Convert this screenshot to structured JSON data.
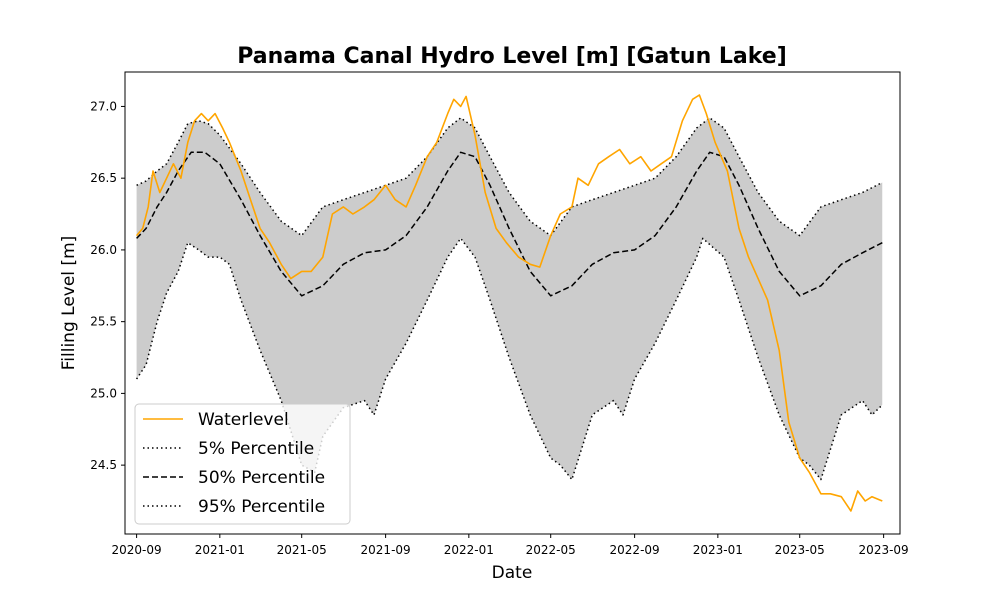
{
  "chart_data": {
    "type": "line",
    "title": "Panama Canal Hydro Level [m] [Gatun Lake]",
    "xlabel": "Date",
    "ylabel": "Filling Level [m]",
    "xlim": [
      "2020-08-15",
      "2023-09-25"
    ],
    "ylim": [
      24.02,
      27.24
    ],
    "x_ticks": [
      "2020-09",
      "2021-01",
      "2021-05",
      "2021-09",
      "2022-01",
      "2022-05",
      "2022-09",
      "2023-01",
      "2023-05",
      "2023-09"
    ],
    "y_ticks": [
      24.5,
      25.0,
      25.5,
      26.0,
      26.5,
      27.0
    ],
    "band_fill": "#cccccc",
    "legend_position": "lower left",
    "series": [
      {
        "name": "Waterlevel",
        "style": "solid",
        "color": "#ffa500",
        "points": [
          [
            "2020-09-01",
            26.1
          ],
          [
            "2020-09-10",
            26.15
          ],
          [
            "2020-09-18",
            26.3
          ],
          [
            "2020-09-25",
            26.55
          ],
          [
            "2020-10-05",
            26.4
          ],
          [
            "2020-10-15",
            26.5
          ],
          [
            "2020-10-25",
            26.6
          ],
          [
            "2020-11-05",
            26.5
          ],
          [
            "2020-11-15",
            26.75
          ],
          [
            "2020-11-25",
            26.9
          ],
          [
            "2020-12-05",
            26.95
          ],
          [
            "2020-12-15",
            26.9
          ],
          [
            "2020-12-25",
            26.95
          ],
          [
            "2021-01-05",
            26.85
          ],
          [
            "2021-01-15",
            26.75
          ],
          [
            "2021-02-01",
            26.55
          ],
          [
            "2021-02-15",
            26.35
          ],
          [
            "2021-03-01",
            26.15
          ],
          [
            "2021-03-15",
            26.05
          ],
          [
            "2021-04-01",
            25.9
          ],
          [
            "2021-04-15",
            25.8
          ],
          [
            "2021-05-01",
            25.85
          ],
          [
            "2021-05-15",
            25.85
          ],
          [
            "2021-06-01",
            25.95
          ],
          [
            "2021-06-15",
            26.25
          ],
          [
            "2021-07-01",
            26.3
          ],
          [
            "2021-07-15",
            26.25
          ],
          [
            "2021-08-01",
            26.3
          ],
          [
            "2021-08-15",
            26.35
          ],
          [
            "2021-09-01",
            26.45
          ],
          [
            "2021-09-15",
            26.35
          ],
          [
            "2021-10-01",
            26.3
          ],
          [
            "2021-10-15",
            26.45
          ],
          [
            "2021-11-01",
            26.65
          ],
          [
            "2021-11-15",
            26.75
          ],
          [
            "2021-12-01",
            26.95
          ],
          [
            "2021-12-10",
            27.05
          ],
          [
            "2021-12-20",
            27.0
          ],
          [
            "2021-12-28",
            27.07
          ],
          [
            "2022-01-10",
            26.8
          ],
          [
            "2022-01-25",
            26.4
          ],
          [
            "2022-02-10",
            26.15
          ],
          [
            "2022-02-25",
            26.05
          ],
          [
            "2022-03-15",
            25.95
          ],
          [
            "2022-04-01",
            25.9
          ],
          [
            "2022-04-15",
            25.88
          ],
          [
            "2022-05-01",
            26.1
          ],
          [
            "2022-05-15",
            26.25
          ],
          [
            "2022-06-01",
            26.3
          ],
          [
            "2022-06-10",
            26.5
          ],
          [
            "2022-06-25",
            26.45
          ],
          [
            "2022-07-10",
            26.6
          ],
          [
            "2022-07-25",
            26.65
          ],
          [
            "2022-08-10",
            26.7
          ],
          [
            "2022-08-25",
            26.6
          ],
          [
            "2022-09-10",
            26.65
          ],
          [
            "2022-09-25",
            26.55
          ],
          [
            "2022-10-10",
            26.6
          ],
          [
            "2022-10-25",
            26.65
          ],
          [
            "2022-11-10",
            26.9
          ],
          [
            "2022-11-25",
            27.05
          ],
          [
            "2022-12-05",
            27.08
          ],
          [
            "2022-12-15",
            26.95
          ],
          [
            "2022-12-28",
            26.75
          ],
          [
            "2023-01-15",
            26.55
          ],
          [
            "2023-02-01",
            26.15
          ],
          [
            "2023-02-15",
            25.95
          ],
          [
            "2023-03-01",
            25.8
          ],
          [
            "2023-03-15",
            25.65
          ],
          [
            "2023-04-01",
            25.3
          ],
          [
            "2023-04-15",
            24.8
          ],
          [
            "2023-05-01",
            24.55
          ],
          [
            "2023-05-15",
            24.45
          ],
          [
            "2023-06-01",
            24.3
          ],
          [
            "2023-06-15",
            24.3
          ],
          [
            "2023-07-01",
            24.28
          ],
          [
            "2023-07-15",
            24.18
          ],
          [
            "2023-07-25",
            24.32
          ],
          [
            "2023-08-05",
            24.25
          ],
          [
            "2023-08-15",
            24.28
          ],
          [
            "2023-08-30",
            24.25
          ]
        ]
      },
      {
        "name": "5% Percentile",
        "style": "dotted",
        "color": "#000000",
        "points": [
          [
            "2020-09-01",
            25.1
          ],
          [
            "2020-09-15",
            25.2
          ],
          [
            "2020-10-01",
            25.5
          ],
          [
            "2020-10-15",
            25.7
          ],
          [
            "2020-11-01",
            25.85
          ],
          [
            "2020-11-15",
            26.05
          ],
          [
            "2020-12-01",
            26.0
          ],
          [
            "2020-12-15",
            25.95
          ],
          [
            "2021-01-01",
            25.95
          ],
          [
            "2021-01-15",
            25.9
          ],
          [
            "2021-02-01",
            25.65
          ],
          [
            "2021-03-01",
            25.3
          ],
          [
            "2021-04-01",
            24.95
          ],
          [
            "2021-05-01",
            24.5
          ],
          [
            "2021-05-20",
            24.45
          ],
          [
            "2021-06-01",
            24.7
          ],
          [
            "2021-07-01",
            24.9
          ],
          [
            "2021-08-01",
            24.95
          ],
          [
            "2021-08-15",
            24.85
          ],
          [
            "2021-09-01",
            25.1
          ],
          [
            "2021-10-01",
            25.35
          ],
          [
            "2021-11-01",
            25.65
          ],
          [
            "2021-12-01",
            25.95
          ],
          [
            "2021-12-20",
            26.08
          ],
          [
            "2022-01-10",
            25.95
          ],
          [
            "2022-02-01",
            25.65
          ],
          [
            "2022-03-01",
            25.25
          ],
          [
            "2022-04-01",
            24.85
          ],
          [
            "2022-05-01",
            24.55
          ],
          [
            "2022-05-15",
            24.5
          ],
          [
            "2022-06-01",
            24.4
          ],
          [
            "2022-07-01",
            24.85
          ],
          [
            "2022-08-01",
            24.95
          ],
          [
            "2022-08-15",
            24.85
          ],
          [
            "2022-09-01",
            25.1
          ],
          [
            "2022-10-01",
            25.35
          ],
          [
            "2022-11-01",
            25.65
          ],
          [
            "2022-12-01",
            25.95
          ],
          [
            "2022-12-10",
            26.08
          ],
          [
            "2023-01-10",
            25.95
          ],
          [
            "2023-02-01",
            25.65
          ],
          [
            "2023-03-01",
            25.25
          ],
          [
            "2023-04-01",
            24.85
          ],
          [
            "2023-05-01",
            24.55
          ],
          [
            "2023-05-15",
            24.5
          ],
          [
            "2023-06-01",
            24.4
          ],
          [
            "2023-07-01",
            24.85
          ],
          [
            "2023-08-01",
            24.95
          ],
          [
            "2023-08-15",
            24.85
          ],
          [
            "2023-08-30",
            24.92
          ]
        ]
      },
      {
        "name": "50% Percentile",
        "style": "dashed",
        "color": "#000000",
        "points": [
          [
            "2020-09-01",
            26.08
          ],
          [
            "2020-09-15",
            26.15
          ],
          [
            "2020-10-01",
            26.3
          ],
          [
            "2020-10-15",
            26.4
          ],
          [
            "2020-11-01",
            26.55
          ],
          [
            "2020-11-20",
            26.68
          ],
          [
            "2020-12-10",
            26.68
          ],
          [
            "2021-01-01",
            26.6
          ],
          [
            "2021-02-01",
            26.35
          ],
          [
            "2021-03-01",
            26.1
          ],
          [
            "2021-04-01",
            25.85
          ],
          [
            "2021-05-01",
            25.68
          ],
          [
            "2021-06-01",
            25.75
          ],
          [
            "2021-07-01",
            25.9
          ],
          [
            "2021-08-01",
            25.98
          ],
          [
            "2021-09-01",
            26.0
          ],
          [
            "2021-10-01",
            26.1
          ],
          [
            "2021-11-01",
            26.3
          ],
          [
            "2021-12-01",
            26.55
          ],
          [
            "2021-12-20",
            26.68
          ],
          [
            "2022-01-10",
            26.65
          ],
          [
            "2022-02-01",
            26.45
          ],
          [
            "2022-03-01",
            26.15
          ],
          [
            "2022-04-01",
            25.85
          ],
          [
            "2022-05-01",
            25.68
          ],
          [
            "2022-06-01",
            25.75
          ],
          [
            "2022-07-01",
            25.9
          ],
          [
            "2022-08-01",
            25.98
          ],
          [
            "2022-09-01",
            26.0
          ],
          [
            "2022-10-01",
            26.1
          ],
          [
            "2022-11-01",
            26.3
          ],
          [
            "2022-12-01",
            26.55
          ],
          [
            "2022-12-20",
            26.68
          ],
          [
            "2023-01-10",
            26.65
          ],
          [
            "2023-02-01",
            26.45
          ],
          [
            "2023-03-01",
            26.15
          ],
          [
            "2023-04-01",
            25.85
          ],
          [
            "2023-05-01",
            25.68
          ],
          [
            "2023-06-01",
            25.75
          ],
          [
            "2023-07-01",
            25.9
          ],
          [
            "2023-08-01",
            25.98
          ],
          [
            "2023-08-30",
            26.05
          ]
        ]
      },
      {
        "name": "95% Percentile",
        "style": "dotted",
        "color": "#000000",
        "points": [
          [
            "2020-09-01",
            26.45
          ],
          [
            "2020-09-15",
            26.48
          ],
          [
            "2020-10-01",
            26.55
          ],
          [
            "2020-10-15",
            26.6
          ],
          [
            "2020-11-01",
            26.75
          ],
          [
            "2020-11-15",
            26.88
          ],
          [
            "2020-12-01",
            26.9
          ],
          [
            "2020-12-15",
            26.88
          ],
          [
            "2021-01-01",
            26.8
          ],
          [
            "2021-02-01",
            26.6
          ],
          [
            "2021-03-01",
            26.4
          ],
          [
            "2021-04-01",
            26.2
          ],
          [
            "2021-05-01",
            26.1
          ],
          [
            "2021-06-01",
            26.3
          ],
          [
            "2021-07-01",
            26.35
          ],
          [
            "2021-08-01",
            26.4
          ],
          [
            "2021-09-01",
            26.45
          ],
          [
            "2021-10-01",
            26.5
          ],
          [
            "2021-11-01",
            26.65
          ],
          [
            "2021-12-01",
            26.85
          ],
          [
            "2021-12-20",
            26.92
          ],
          [
            "2022-01-10",
            26.85
          ],
          [
            "2022-02-01",
            26.65
          ],
          [
            "2022-03-01",
            26.4
          ],
          [
            "2022-04-01",
            26.2
          ],
          [
            "2022-05-01",
            26.1
          ],
          [
            "2022-06-01",
            26.3
          ],
          [
            "2022-07-01",
            26.35
          ],
          [
            "2022-08-01",
            26.4
          ],
          [
            "2022-09-01",
            26.45
          ],
          [
            "2022-10-01",
            26.5
          ],
          [
            "2022-11-01",
            26.65
          ],
          [
            "2022-12-01",
            26.85
          ],
          [
            "2022-12-20",
            26.92
          ],
          [
            "2023-01-10",
            26.85
          ],
          [
            "2023-02-01",
            26.65
          ],
          [
            "2023-03-01",
            26.4
          ],
          [
            "2023-04-01",
            26.2
          ],
          [
            "2023-05-01",
            26.1
          ],
          [
            "2023-06-01",
            26.3
          ],
          [
            "2023-07-01",
            26.35
          ],
          [
            "2023-08-01",
            26.4
          ],
          [
            "2023-08-30",
            26.47
          ]
        ]
      }
    ]
  }
}
